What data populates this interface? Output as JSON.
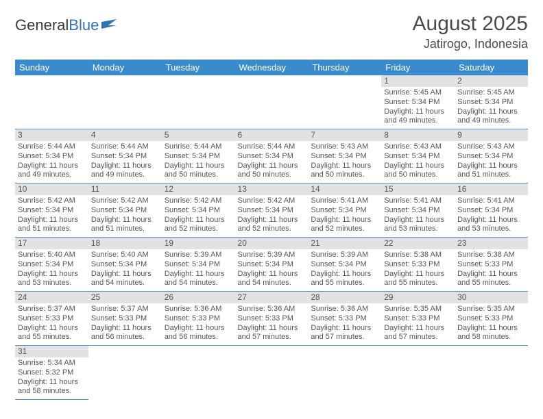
{
  "logo": {
    "text1": "General",
    "text2": "Blue"
  },
  "title": "August 2025",
  "location": "Jatirogo, Indonesia",
  "colors": {
    "header_bg": "#3a8bce",
    "header_text": "#ffffff",
    "daynum_bg": "#e2e2e2",
    "cell_border": "#5a8fc4",
    "text": "#555555",
    "logo_blue": "#2f73b8"
  },
  "day_headers": [
    "Sunday",
    "Monday",
    "Tuesday",
    "Wednesday",
    "Thursday",
    "Friday",
    "Saturday"
  ],
  "weeks": [
    [
      null,
      null,
      null,
      null,
      null,
      {
        "n": "1",
        "sr": "Sunrise: 5:45 AM",
        "ss": "Sunset: 5:34 PM",
        "d1": "Daylight: 11 hours",
        "d2": "and 49 minutes."
      },
      {
        "n": "2",
        "sr": "Sunrise: 5:45 AM",
        "ss": "Sunset: 5:34 PM",
        "d1": "Daylight: 11 hours",
        "d2": "and 49 minutes."
      }
    ],
    [
      {
        "n": "3",
        "sr": "Sunrise: 5:44 AM",
        "ss": "Sunset: 5:34 PM",
        "d1": "Daylight: 11 hours",
        "d2": "and 49 minutes."
      },
      {
        "n": "4",
        "sr": "Sunrise: 5:44 AM",
        "ss": "Sunset: 5:34 PM",
        "d1": "Daylight: 11 hours",
        "d2": "and 49 minutes."
      },
      {
        "n": "5",
        "sr": "Sunrise: 5:44 AM",
        "ss": "Sunset: 5:34 PM",
        "d1": "Daylight: 11 hours",
        "d2": "and 50 minutes."
      },
      {
        "n": "6",
        "sr": "Sunrise: 5:44 AM",
        "ss": "Sunset: 5:34 PM",
        "d1": "Daylight: 11 hours",
        "d2": "and 50 minutes."
      },
      {
        "n": "7",
        "sr": "Sunrise: 5:43 AM",
        "ss": "Sunset: 5:34 PM",
        "d1": "Daylight: 11 hours",
        "d2": "and 50 minutes."
      },
      {
        "n": "8",
        "sr": "Sunrise: 5:43 AM",
        "ss": "Sunset: 5:34 PM",
        "d1": "Daylight: 11 hours",
        "d2": "and 50 minutes."
      },
      {
        "n": "9",
        "sr": "Sunrise: 5:43 AM",
        "ss": "Sunset: 5:34 PM",
        "d1": "Daylight: 11 hours",
        "d2": "and 51 minutes."
      }
    ],
    [
      {
        "n": "10",
        "sr": "Sunrise: 5:42 AM",
        "ss": "Sunset: 5:34 PM",
        "d1": "Daylight: 11 hours",
        "d2": "and 51 minutes."
      },
      {
        "n": "11",
        "sr": "Sunrise: 5:42 AM",
        "ss": "Sunset: 5:34 PM",
        "d1": "Daylight: 11 hours",
        "d2": "and 51 minutes."
      },
      {
        "n": "12",
        "sr": "Sunrise: 5:42 AM",
        "ss": "Sunset: 5:34 PM",
        "d1": "Daylight: 11 hours",
        "d2": "and 52 minutes."
      },
      {
        "n": "13",
        "sr": "Sunrise: 5:42 AM",
        "ss": "Sunset: 5:34 PM",
        "d1": "Daylight: 11 hours",
        "d2": "and 52 minutes."
      },
      {
        "n": "14",
        "sr": "Sunrise: 5:41 AM",
        "ss": "Sunset: 5:34 PM",
        "d1": "Daylight: 11 hours",
        "d2": "and 52 minutes."
      },
      {
        "n": "15",
        "sr": "Sunrise: 5:41 AM",
        "ss": "Sunset: 5:34 PM",
        "d1": "Daylight: 11 hours",
        "d2": "and 53 minutes."
      },
      {
        "n": "16",
        "sr": "Sunrise: 5:41 AM",
        "ss": "Sunset: 5:34 PM",
        "d1": "Daylight: 11 hours",
        "d2": "and 53 minutes."
      }
    ],
    [
      {
        "n": "17",
        "sr": "Sunrise: 5:40 AM",
        "ss": "Sunset: 5:34 PM",
        "d1": "Daylight: 11 hours",
        "d2": "and 53 minutes."
      },
      {
        "n": "18",
        "sr": "Sunrise: 5:40 AM",
        "ss": "Sunset: 5:34 PM",
        "d1": "Daylight: 11 hours",
        "d2": "and 54 minutes."
      },
      {
        "n": "19",
        "sr": "Sunrise: 5:39 AM",
        "ss": "Sunset: 5:34 PM",
        "d1": "Daylight: 11 hours",
        "d2": "and 54 minutes."
      },
      {
        "n": "20",
        "sr": "Sunrise: 5:39 AM",
        "ss": "Sunset: 5:34 PM",
        "d1": "Daylight: 11 hours",
        "d2": "and 54 minutes."
      },
      {
        "n": "21",
        "sr": "Sunrise: 5:39 AM",
        "ss": "Sunset: 5:34 PM",
        "d1": "Daylight: 11 hours",
        "d2": "and 55 minutes."
      },
      {
        "n": "22",
        "sr": "Sunrise: 5:38 AM",
        "ss": "Sunset: 5:33 PM",
        "d1": "Daylight: 11 hours",
        "d2": "and 55 minutes."
      },
      {
        "n": "23",
        "sr": "Sunrise: 5:38 AM",
        "ss": "Sunset: 5:33 PM",
        "d1": "Daylight: 11 hours",
        "d2": "and 55 minutes."
      }
    ],
    [
      {
        "n": "24",
        "sr": "Sunrise: 5:37 AM",
        "ss": "Sunset: 5:33 PM",
        "d1": "Daylight: 11 hours",
        "d2": "and 55 minutes."
      },
      {
        "n": "25",
        "sr": "Sunrise: 5:37 AM",
        "ss": "Sunset: 5:33 PM",
        "d1": "Daylight: 11 hours",
        "d2": "and 56 minutes."
      },
      {
        "n": "26",
        "sr": "Sunrise: 5:36 AM",
        "ss": "Sunset: 5:33 PM",
        "d1": "Daylight: 11 hours",
        "d2": "and 56 minutes."
      },
      {
        "n": "27",
        "sr": "Sunrise: 5:36 AM",
        "ss": "Sunset: 5:33 PM",
        "d1": "Daylight: 11 hours",
        "d2": "and 57 minutes."
      },
      {
        "n": "28",
        "sr": "Sunrise: 5:36 AM",
        "ss": "Sunset: 5:33 PM",
        "d1": "Daylight: 11 hours",
        "d2": "and 57 minutes."
      },
      {
        "n": "29",
        "sr": "Sunrise: 5:35 AM",
        "ss": "Sunset: 5:33 PM",
        "d1": "Daylight: 11 hours",
        "d2": "and 57 minutes."
      },
      {
        "n": "30",
        "sr": "Sunrise: 5:35 AM",
        "ss": "Sunset: 5:33 PM",
        "d1": "Daylight: 11 hours",
        "d2": "and 58 minutes."
      }
    ],
    [
      {
        "n": "31",
        "sr": "Sunrise: 5:34 AM",
        "ss": "Sunset: 5:32 PM",
        "d1": "Daylight: 11 hours",
        "d2": "and 58 minutes."
      },
      null,
      null,
      null,
      null,
      null,
      null
    ]
  ]
}
